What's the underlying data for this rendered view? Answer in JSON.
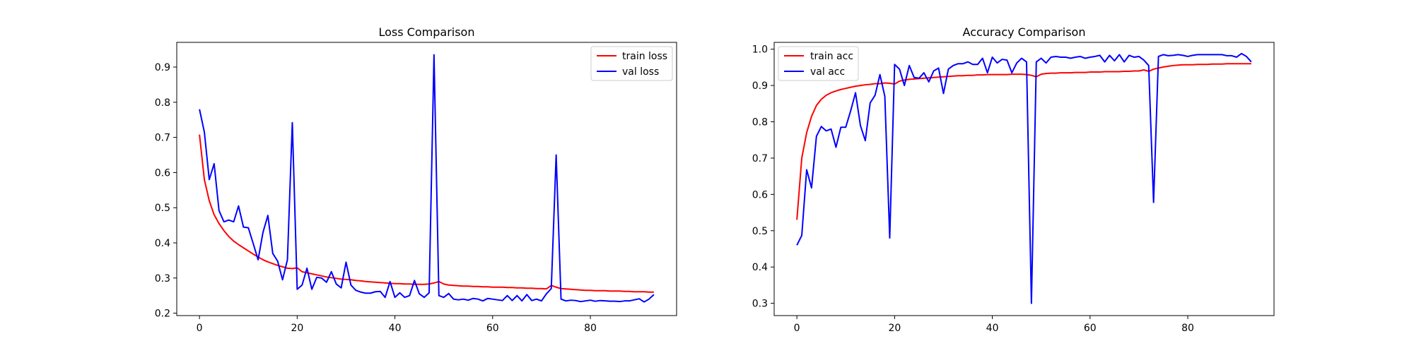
{
  "colors": {
    "train": "#ff0000",
    "val": "#0000ff",
    "axis": "#000000",
    "background": "#ffffff"
  },
  "chart_data": [
    {
      "type": "line",
      "title": "Loss Comparison",
      "xlabel": "",
      "ylabel": "",
      "xlim": [
        -4.65,
        97.65
      ],
      "ylim": [
        0.1932,
        0.9703
      ],
      "xticks": [
        0,
        20,
        40,
        60,
        80
      ],
      "xtick_labels": [
        "0",
        "20",
        "40",
        "60",
        "80"
      ],
      "yticks": [
        0.2,
        0.3,
        0.4,
        0.5,
        0.6,
        0.7,
        0.8,
        0.9
      ],
      "ytick_labels": [
        "0.2",
        "0.3",
        "0.4",
        "0.5",
        "0.6",
        "0.7",
        "0.8",
        "0.9"
      ],
      "grid": false,
      "legend_position": "upper right",
      "x": [
        0,
        1,
        2,
        3,
        4,
        5,
        6,
        7,
        8,
        9,
        10,
        11,
        12,
        13,
        14,
        15,
        16,
        17,
        18,
        19,
        20,
        21,
        22,
        23,
        24,
        25,
        26,
        27,
        28,
        29,
        30,
        31,
        32,
        33,
        34,
        35,
        36,
        37,
        38,
        39,
        40,
        41,
        42,
        43,
        44,
        45,
        46,
        47,
        48,
        49,
        50,
        51,
        52,
        53,
        54,
        55,
        56,
        57,
        58,
        59,
        60,
        61,
        62,
        63,
        64,
        65,
        66,
        67,
        68,
        69,
        70,
        71,
        72,
        73,
        74,
        75,
        76,
        77,
        78,
        79,
        80,
        81,
        82,
        83,
        84,
        85,
        86,
        87,
        88,
        89,
        90,
        91,
        92,
        93
      ],
      "series": [
        {
          "name": "train loss",
          "color": "#ff0000",
          "values": [
            0.708,
            0.58,
            0.52,
            0.48,
            0.455,
            0.435,
            0.418,
            0.405,
            0.395,
            0.386,
            0.377,
            0.368,
            0.36,
            0.352,
            0.346,
            0.341,
            0.336,
            0.332,
            0.328,
            0.327,
            0.329,
            0.318,
            0.315,
            0.312,
            0.309,
            0.306,
            0.303,
            0.301,
            0.299,
            0.297,
            0.296,
            0.295,
            0.293,
            0.292,
            0.29,
            0.289,
            0.288,
            0.287,
            0.286,
            0.285,
            0.284,
            0.284,
            0.283,
            0.283,
            0.282,
            0.282,
            0.282,
            0.283,
            0.286,
            0.29,
            0.283,
            0.28,
            0.279,
            0.278,
            0.277,
            0.277,
            0.276,
            0.276,
            0.275,
            0.275,
            0.274,
            0.274,
            0.274,
            0.273,
            0.273,
            0.272,
            0.272,
            0.271,
            0.271,
            0.27,
            0.27,
            0.269,
            0.279,
            0.274,
            0.27,
            0.269,
            0.268,
            0.267,
            0.266,
            0.265,
            0.265,
            0.264,
            0.264,
            0.264,
            0.263,
            0.263,
            0.263,
            0.262,
            0.262,
            0.261,
            0.261,
            0.261,
            0.26,
            0.26
          ]
        },
        {
          "name": "val loss",
          "color": "#0000ff",
          "values": [
            0.78,
            0.715,
            0.58,
            0.625,
            0.492,
            0.46,
            0.465,
            0.46,
            0.505,
            0.445,
            0.443,
            0.398,
            0.352,
            0.43,
            0.478,
            0.37,
            0.348,
            0.295,
            0.352,
            0.742,
            0.268,
            0.28,
            0.328,
            0.268,
            0.302,
            0.3,
            0.288,
            0.318,
            0.283,
            0.272,
            0.345,
            0.28,
            0.265,
            0.26,
            0.257,
            0.257,
            0.261,
            0.262,
            0.245,
            0.29,
            0.245,
            0.258,
            0.245,
            0.25,
            0.293,
            0.255,
            0.245,
            0.258,
            0.935,
            0.25,
            0.245,
            0.256,
            0.24,
            0.238,
            0.24,
            0.237,
            0.242,
            0.24,
            0.235,
            0.242,
            0.24,
            0.238,
            0.236,
            0.25,
            0.236,
            0.25,
            0.235,
            0.253,
            0.236,
            0.24,
            0.235,
            0.255,
            0.27,
            0.65,
            0.24,
            0.235,
            0.237,
            0.236,
            0.233,
            0.235,
            0.237,
            0.234,
            0.236,
            0.235,
            0.234,
            0.234,
            0.233,
            0.235,
            0.235,
            0.238,
            0.241,
            0.232,
            0.24,
            0.253
          ]
        }
      ]
    },
    {
      "type": "line",
      "title": "Accuracy Comparison",
      "xlabel": "",
      "ylabel": "",
      "xlim": [
        -4.65,
        97.65
      ],
      "ylim": [
        0.2662,
        1.0188
      ],
      "xticks": [
        0,
        20,
        40,
        60,
        80
      ],
      "xtick_labels": [
        "0",
        "20",
        "40",
        "60",
        "80"
      ],
      "yticks": [
        0.3,
        0.4,
        0.5,
        0.6,
        0.7,
        0.8,
        0.9,
        1.0
      ],
      "ytick_labels": [
        "0.3",
        "0.4",
        "0.5",
        "0.6",
        "0.7",
        "0.8",
        "0.9",
        "1.0"
      ],
      "grid": false,
      "legend_position": "upper left",
      "x": [
        0,
        1,
        2,
        3,
        4,
        5,
        6,
        7,
        8,
        9,
        10,
        11,
        12,
        13,
        14,
        15,
        16,
        17,
        18,
        19,
        20,
        21,
        22,
        23,
        24,
        25,
        26,
        27,
        28,
        29,
        30,
        31,
        32,
        33,
        34,
        35,
        36,
        37,
        38,
        39,
        40,
        41,
        42,
        43,
        44,
        45,
        46,
        47,
        48,
        49,
        50,
        51,
        52,
        53,
        54,
        55,
        56,
        57,
        58,
        59,
        60,
        61,
        62,
        63,
        64,
        65,
        66,
        67,
        68,
        69,
        70,
        71,
        72,
        73,
        74,
        75,
        76,
        77,
        78,
        79,
        80,
        81,
        82,
        83,
        84,
        85,
        86,
        87,
        88,
        89,
        90,
        91,
        92,
        93
      ],
      "series": [
        {
          "name": "train acc",
          "color": "#ff0000",
          "values": [
            0.53,
            0.7,
            0.77,
            0.815,
            0.845,
            0.862,
            0.873,
            0.88,
            0.885,
            0.889,
            0.892,
            0.895,
            0.898,
            0.9,
            0.902,
            0.903,
            0.905,
            0.905,
            0.907,
            0.906,
            0.904,
            0.912,
            0.915,
            0.917,
            0.918,
            0.919,
            0.92,
            0.921,
            0.922,
            0.923,
            0.924,
            0.925,
            0.926,
            0.927,
            0.927,
            0.928,
            0.928,
            0.929,
            0.929,
            0.93,
            0.93,
            0.93,
            0.93,
            0.93,
            0.931,
            0.931,
            0.931,
            0.93,
            0.928,
            0.924,
            0.931,
            0.933,
            0.934,
            0.934,
            0.935,
            0.935,
            0.935,
            0.936,
            0.936,
            0.936,
            0.937,
            0.937,
            0.937,
            0.938,
            0.938,
            0.938,
            0.938,
            0.939,
            0.939,
            0.94,
            0.94,
            0.943,
            0.939,
            0.945,
            0.948,
            0.951,
            0.953,
            0.955,
            0.956,
            0.957,
            0.957,
            0.957,
            0.958,
            0.958,
            0.958,
            0.959,
            0.959,
            0.959,
            0.96,
            0.96,
            0.96,
            0.96,
            0.96,
            0.96
          ]
        },
        {
          "name": "val acc",
          "color": "#0000ff",
          "values": [
            0.46,
            0.487,
            0.668,
            0.618,
            0.76,
            0.787,
            0.775,
            0.78,
            0.73,
            0.785,
            0.785,
            0.83,
            0.88,
            0.79,
            0.748,
            0.852,
            0.873,
            0.93,
            0.87,
            0.48,
            0.958,
            0.945,
            0.9,
            0.955,
            0.922,
            0.92,
            0.935,
            0.91,
            0.94,
            0.948,
            0.878,
            0.945,
            0.955,
            0.96,
            0.96,
            0.965,
            0.958,
            0.958,
            0.975,
            0.935,
            0.978,
            0.962,
            0.972,
            0.97,
            0.935,
            0.962,
            0.975,
            0.965,
            0.3,
            0.965,
            0.975,
            0.962,
            0.978,
            0.98,
            0.978,
            0.978,
            0.975,
            0.978,
            0.98,
            0.975,
            0.978,
            0.98,
            0.983,
            0.965,
            0.983,
            0.968,
            0.985,
            0.965,
            0.983,
            0.978,
            0.98,
            0.97,
            0.955,
            0.578,
            0.98,
            0.985,
            0.982,
            0.983,
            0.985,
            0.983,
            0.98,
            0.983,
            0.985,
            0.985,
            0.985,
            0.985,
            0.985,
            0.985,
            0.982,
            0.982,
            0.978,
            0.988,
            0.98,
            0.965
          ]
        }
      ]
    }
  ]
}
